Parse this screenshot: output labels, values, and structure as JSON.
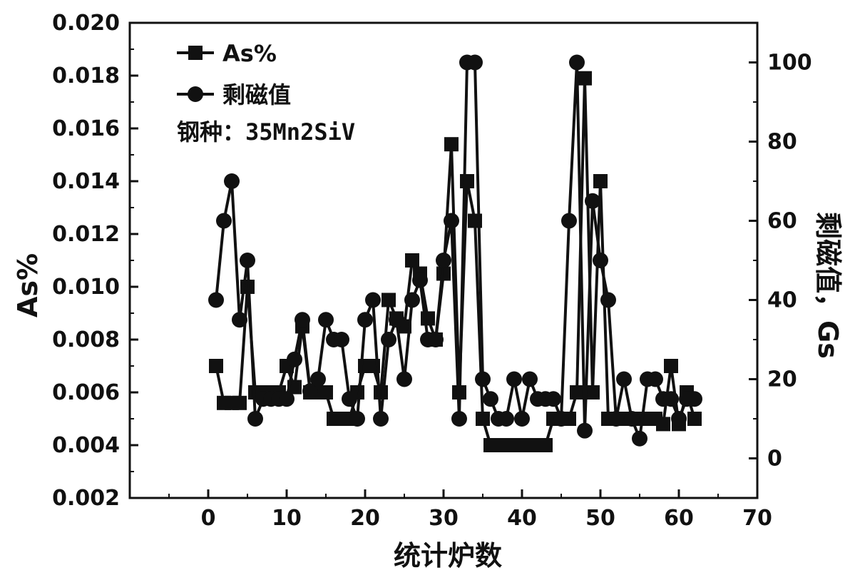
{
  "chart_data": {
    "type": "line",
    "xlabel": "统计炉数",
    "ylabel_left": "As%",
    "ylabel_right": "剩磁值，Gs",
    "xlim": [
      -10,
      70
    ],
    "ylim_left": [
      0.002,
      0.02
    ],
    "ylim_right": [
      -10,
      110
    ],
    "x_ticks": [
      "0",
      "10",
      "20",
      "30",
      "40",
      "50",
      "60",
      "70"
    ],
    "y_left_ticks": [
      "0.002",
      "0.004",
      "0.006",
      "0.008",
      "0.010",
      "0.012",
      "0.014",
      "0.016",
      "0.018",
      "0.020"
    ],
    "y_right_ticks": [
      "0",
      "20",
      "40",
      "60",
      "80",
      "100"
    ],
    "annotation": "钢种：35Mn2SiV",
    "grid": false,
    "legend_position": "top-left",
    "series": [
      {
        "name": "As%",
        "axis": "left",
        "marker": "square",
        "color": "#111111",
        "x": [
          1,
          2,
          3,
          4,
          5,
          6,
          7,
          8,
          9,
          10,
          11,
          12,
          13,
          14,
          15,
          16,
          17,
          18,
          19,
          20,
          21,
          22,
          23,
          24,
          25,
          26,
          27,
          28,
          29,
          30,
          31,
          32,
          33,
          34,
          35,
          36,
          37,
          38,
          39,
          40,
          41,
          42,
          43,
          44,
          45,
          46,
          47,
          48,
          49,
          50,
          51,
          52,
          53,
          54,
          55,
          56,
          57,
          58,
          59,
          60,
          61,
          62
        ],
        "values": [
          0.007,
          0.0056,
          0.0056,
          0.0056,
          0.01,
          0.006,
          0.006,
          0.006,
          0.006,
          0.007,
          0.0062,
          0.0085,
          0.006,
          0.006,
          0.006,
          0.005,
          0.005,
          0.005,
          0.006,
          0.007,
          0.007,
          0.006,
          0.0095,
          0.0088,
          0.0085,
          0.011,
          0.0105,
          0.0088,
          0.008,
          0.0105,
          0.0154,
          0.006,
          0.014,
          0.0125,
          0.005,
          0.004,
          0.004,
          0.004,
          0.004,
          0.004,
          0.004,
          0.004,
          0.004,
          0.005,
          0.005,
          0.005,
          0.006,
          0.0179,
          0.006,
          0.014,
          0.005,
          0.005,
          0.005,
          0.005,
          0.005,
          0.005,
          0.005,
          0.0048,
          0.007,
          0.0048,
          0.006,
          0.005
        ]
      },
      {
        "name": "剩磁值",
        "axis": "right",
        "marker": "circle",
        "color": "#111111",
        "x": [
          1,
          2,
          3,
          4,
          5,
          6,
          7,
          8,
          9,
          10,
          11,
          12,
          13,
          14,
          15,
          16,
          17,
          18,
          19,
          20,
          21,
          22,
          23,
          24,
          25,
          26,
          27,
          28,
          29,
          30,
          31,
          32,
          33,
          34,
          35,
          36,
          37,
          38,
          39,
          40,
          41,
          42,
          43,
          44,
          45,
          46,
          47,
          48,
          49,
          50,
          51,
          52,
          53,
          54,
          55,
          56,
          57,
          58,
          59,
          60,
          61,
          62
        ],
        "values": [
          40,
          60,
          70,
          35,
          50,
          10,
          15,
          15,
          15,
          15,
          25,
          35,
          17,
          20,
          35,
          30,
          30,
          15,
          10,
          35,
          40,
          10,
          30,
          35,
          20,
          40,
          45,
          30,
          30,
          50,
          60,
          10,
          100,
          100,
          20,
          15,
          10,
          10,
          20,
          10,
          20,
          15,
          15,
          15,
          10,
          60,
          100,
          7,
          65,
          50,
          40,
          10,
          20,
          10,
          5,
          20,
          20,
          15,
          15,
          10,
          15,
          15
        ]
      }
    ]
  }
}
